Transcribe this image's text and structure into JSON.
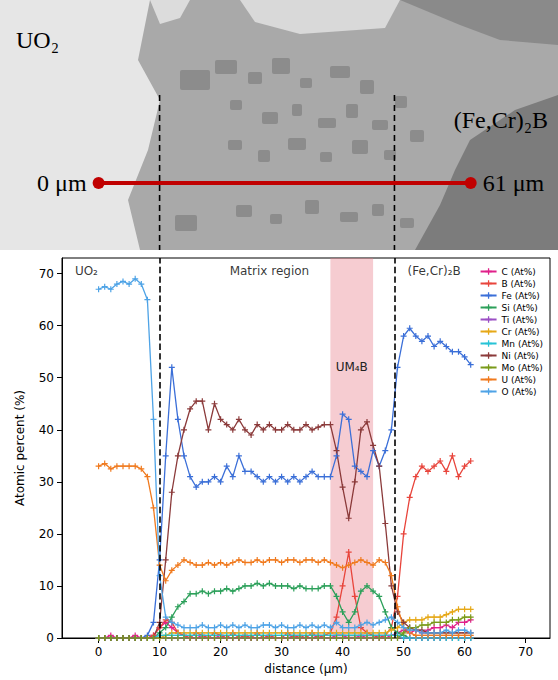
{
  "chart_data": {
    "type": "line",
    "x_label": "distance (μm)",
    "y_label": "Atomic percent (%)",
    "x": [
      0,
      1,
      2,
      3,
      4,
      5,
      6,
      7,
      8,
      9,
      10,
      11,
      12,
      13,
      14,
      15,
      16,
      17,
      18,
      19,
      20,
      21,
      22,
      23,
      24,
      25,
      26,
      27,
      28,
      29,
      30,
      31,
      32,
      33,
      34,
      35,
      36,
      37,
      38,
      39,
      40,
      41,
      42,
      43,
      44,
      45,
      46,
      47,
      48,
      49,
      50,
      51,
      52,
      53,
      54,
      55,
      56,
      57,
      58,
      59,
      60,
      61
    ],
    "xlim": [
      -6,
      74
    ],
    "xticks": [
      0,
      10,
      20,
      30,
      40,
      50,
      60,
      70
    ],
    "ylim": [
      0,
      73
    ],
    "yticks": [
      0,
      10,
      20,
      30,
      40,
      50,
      60,
      70
    ],
    "grid": false,
    "legend": "upper right",
    "marker": "plus",
    "boundaries": [
      10,
      48.5
    ],
    "band": {
      "from": 38,
      "to": 45,
      "label": "UM₄B"
    },
    "annotations": [
      {
        "text": "UO₂",
        "x": -2,
        "y": 70.5
      },
      {
        "text": "Matrix region",
        "x": 28,
        "y": 70.5
      },
      {
        "text": "(Fe,Cr)₂B",
        "x": 55,
        "y": 70.5
      }
    ],
    "series": [
      {
        "name": "C (At%)",
        "color": "#e0218a",
        "values": [
          0,
          0,
          0.5,
          0,
          0,
          0,
          0.5,
          0,
          0,
          0.5,
          2,
          3,
          2,
          1,
          0.5,
          0,
          0,
          0.5,
          0,
          0,
          0.5,
          0,
          0,
          0,
          0.5,
          0,
          0,
          0,
          0.5,
          0,
          0,
          0,
          0.5,
          0,
          0,
          0,
          0.5,
          0,
          0,
          0.5,
          0.5,
          0,
          0,
          0.5,
          0,
          0,
          0.5,
          0,
          0.5,
          1,
          1.5,
          1,
          1.5,
          1,
          1.5,
          2,
          2,
          2.5,
          2,
          3,
          3,
          3.5
        ]
      },
      {
        "name": "B (At%)",
        "color": "#e8453c",
        "values": [
          0,
          0,
          0,
          0,
          0,
          0,
          0,
          0,
          0,
          0.5,
          2,
          3.5,
          3,
          1,
          0.5,
          0,
          1,
          0.5,
          0,
          1,
          0.5,
          0,
          1,
          0,
          0.5,
          0,
          1,
          0,
          0.5,
          0,
          0,
          1,
          0,
          0.5,
          0,
          1,
          0,
          0.5,
          1,
          4,
          10,
          16.5,
          8,
          2,
          1,
          0.5,
          0,
          0.5,
          2,
          8,
          20,
          27,
          31,
          33,
          32,
          33,
          34,
          32,
          35,
          31,
          33,
          34
        ]
      },
      {
        "name": "Fe (At%)",
        "color": "#3b6fd8",
        "values": [
          0,
          0,
          0,
          0,
          0,
          0,
          0,
          0,
          0.5,
          3,
          15,
          35,
          52,
          42,
          35,
          31,
          29,
          30,
          30,
          31,
          30,
          33,
          31,
          35,
          32,
          32,
          31,
          30,
          31,
          30,
          31,
          30,
          31,
          30,
          31,
          32,
          31,
          31,
          31,
          35,
          43,
          42,
          33,
          32,
          31,
          36,
          33,
          36,
          40,
          52,
          58,
          59.5,
          58,
          57,
          58,
          56,
          57,
          56,
          55,
          55,
          54,
          52.5
        ]
      },
      {
        "name": "Si (At%)",
        "color": "#2ca05a",
        "values": [
          0,
          0,
          0,
          0,
          0,
          0,
          0,
          0,
          0,
          0,
          1,
          2,
          4,
          6,
          7,
          8.5,
          8.5,
          9,
          8.5,
          9,
          9,
          9.5,
          9,
          9.5,
          10,
          10,
          10.5,
          10,
          10.5,
          10,
          10,
          10,
          9.5,
          10,
          9.5,
          9.5,
          9.5,
          10,
          10,
          8,
          5,
          3,
          5,
          9,
          10,
          9,
          8,
          5,
          2,
          1,
          0.5,
          0,
          0,
          0,
          0,
          0,
          0,
          0,
          0,
          0,
          0,
          0
        ]
      },
      {
        "name": "Ti (At%)",
        "color": "#9b4fc4",
        "values": [
          0,
          0,
          0,
          0,
          0,
          0,
          0,
          0,
          0,
          0,
          0,
          0,
          0,
          0,
          0,
          0,
          0,
          0,
          0,
          0,
          0,
          0,
          0,
          0,
          0,
          0,
          0,
          0,
          0,
          0,
          0,
          0,
          0,
          0,
          0,
          0,
          0,
          0,
          0,
          0,
          0,
          0,
          0,
          0,
          0,
          0,
          0,
          0,
          0,
          0,
          0,
          0,
          0,
          0,
          0,
          0,
          0,
          0,
          0,
          0,
          0,
          0
        ]
      },
      {
        "name": "Cr (At%)",
        "color": "#e6a817",
        "values": [
          0,
          0,
          0,
          0,
          0,
          0,
          0,
          0,
          0,
          0,
          0,
          0.5,
          1,
          1,
          1,
          1,
          1,
          1,
          1,
          1,
          1,
          1,
          1,
          1,
          1,
          1,
          1,
          1,
          1,
          1,
          1,
          1,
          1,
          1,
          1,
          1,
          1,
          1,
          1,
          1,
          1,
          1,
          1,
          1,
          1,
          1,
          1,
          1,
          1.5,
          2,
          3,
          3.5,
          3.5,
          3.5,
          4,
          4,
          4,
          4.5,
          5,
          5.5,
          5.5,
          5.5
        ]
      },
      {
        "name": "Mn (At%)",
        "color": "#27c3d6",
        "values": [
          0,
          0,
          0,
          0,
          0,
          0,
          0,
          0,
          0,
          0,
          0.5,
          0.5,
          0.5,
          0.5,
          0.5,
          0.5,
          0.5,
          0.5,
          0.5,
          0.5,
          0.5,
          0.5,
          0.5,
          0.5,
          0.5,
          0.5,
          0.5,
          0.5,
          0.5,
          0.5,
          0.5,
          0.5,
          0.5,
          0.5,
          0.5,
          0.5,
          0.5,
          0.5,
          0.5,
          0.5,
          0.5,
          0.5,
          0.5,
          0.5,
          0.5,
          0.5,
          0.5,
          0.5,
          0.5,
          0.5,
          0,
          0,
          0,
          0,
          0,
          0,
          0,
          0,
          0,
          0,
          0,
          0
        ]
      },
      {
        "name": "Ni (At%)",
        "color": "#8b3a3a",
        "values": [
          0,
          0,
          0,
          0,
          0,
          0,
          0,
          0,
          0,
          0,
          3,
          15,
          28,
          35,
          40,
          44,
          45.5,
          45.5,
          40,
          45,
          42,
          41,
          40,
          42,
          40,
          39,
          41,
          40,
          41,
          40,
          40,
          41,
          40,
          40,
          41,
          40,
          40.5,
          41,
          41,
          36,
          29,
          23,
          30,
          40,
          41.5,
          37,
          33,
          22,
          10,
          5,
          3,
          2,
          1.5,
          1.5,
          1,
          1,
          1,
          1,
          1,
          1,
          1,
          1
        ]
      },
      {
        "name": "Mo (At%)",
        "color": "#7a9a1a",
        "values": [
          0,
          0,
          0,
          0,
          0,
          0,
          0,
          0,
          0,
          0,
          0,
          0,
          0,
          0,
          0,
          0,
          0,
          0,
          0,
          0,
          0,
          0,
          0,
          0,
          0,
          0,
          0,
          0,
          0,
          0,
          0,
          0,
          0,
          0,
          0,
          0,
          0,
          0,
          0,
          0,
          0,
          0,
          0,
          0,
          0,
          0,
          0,
          0,
          0,
          0,
          1,
          2,
          2,
          2.5,
          2.5,
          3,
          3,
          3,
          3.5,
          3.5,
          4,
          4
        ]
      },
      {
        "name": "U (At%)",
        "color": "#f07a1e",
        "values": [
          33,
          33.5,
          32.5,
          33,
          33,
          33,
          33,
          32.5,
          31,
          25,
          14,
          11,
          13,
          14,
          15,
          14.5,
          14,
          14,
          14.5,
          14,
          14.5,
          14,
          14.5,
          15,
          14.5,
          14.5,
          15,
          14.5,
          15,
          15,
          14.5,
          15,
          15,
          14.5,
          15,
          15,
          14.5,
          15,
          14.5,
          14,
          13.5,
          14,
          14.5,
          15,
          14.5,
          14,
          15,
          14.5,
          12,
          6,
          2,
          1,
          0.5,
          0.5,
          0.5,
          0.5,
          0.5,
          0.5,
          0.5,
          0.5,
          0.5,
          0.5
        ]
      },
      {
        "name": "O (At%)",
        "color": "#4ea3e6",
        "values": [
          67,
          67.5,
          67,
          68,
          68.5,
          68,
          69,
          68,
          65,
          42,
          12,
          4,
          3,
          2.5,
          2,
          2,
          2,
          2.5,
          2,
          2,
          2.5,
          2,
          2.5,
          2,
          2.5,
          2,
          2,
          2.5,
          2.5,
          2,
          2.5,
          2,
          2,
          2.5,
          2,
          2.5,
          2,
          2.5,
          2,
          3,
          2,
          2,
          2,
          2.5,
          3,
          2.5,
          3,
          3.5,
          4,
          3,
          2,
          1.5,
          1.5,
          1,
          1,
          1,
          1,
          1.5,
          1,
          1.5,
          1.5,
          1
        ]
      }
    ]
  },
  "micrograph": {
    "labels": [
      "UO₂",
      "(Fe,Cr)₂B"
    ],
    "scan": {
      "from": 0,
      "to": 61,
      "labels": [
        "0 μm",
        "61 μm"
      ]
    }
  }
}
